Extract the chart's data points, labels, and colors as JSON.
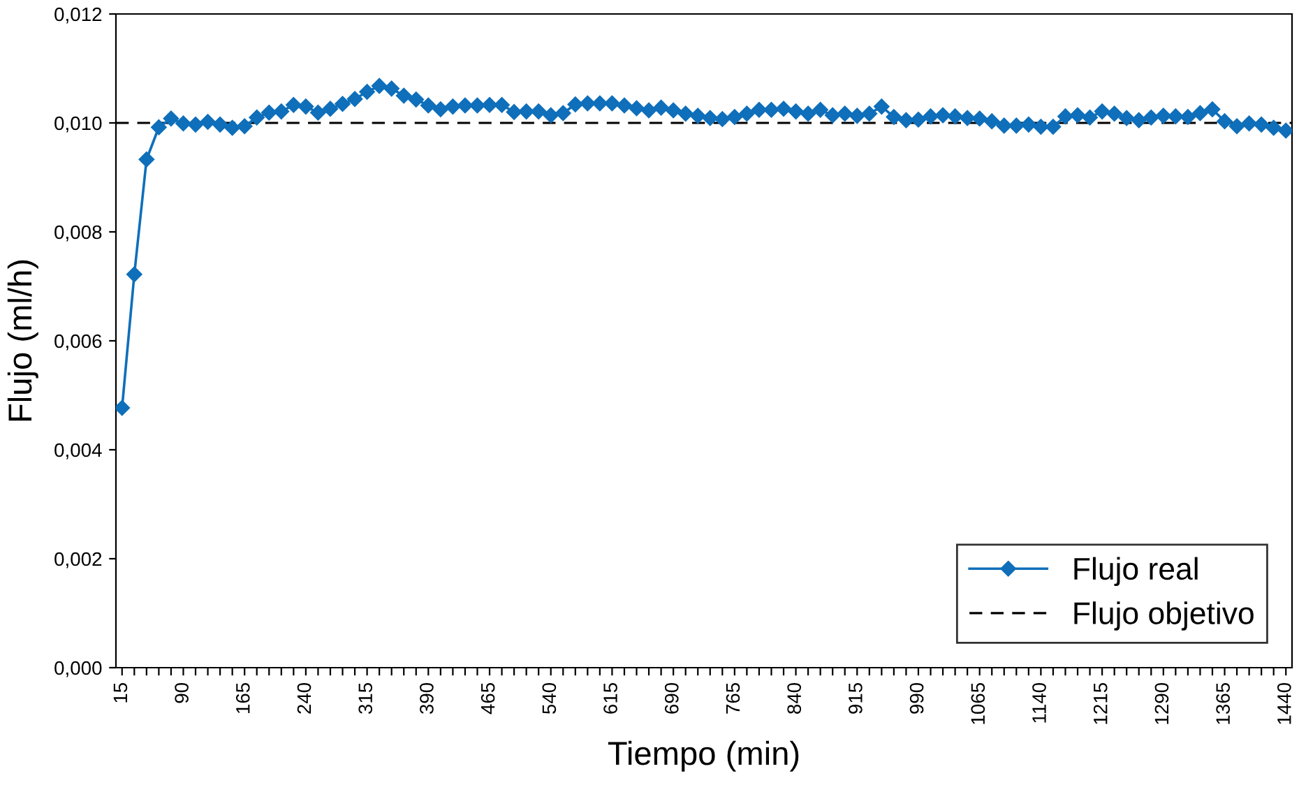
{
  "chart_data": {
    "type": "line",
    "xlabel": "Tiempo (min)",
    "ylabel": "Flujo (ml/h)",
    "categories": [
      "15",
      null,
      null,
      null,
      null,
      "90",
      null,
      null,
      null,
      null,
      "165",
      null,
      null,
      null,
      null,
      "240",
      null,
      null,
      null,
      null,
      "315",
      null,
      null,
      null,
      null,
      "390",
      null,
      null,
      null,
      null,
      "465",
      null,
      null,
      null,
      null,
      "540",
      null,
      null,
      null,
      null,
      "615",
      null,
      null,
      null,
      null,
      "690",
      null,
      null,
      null,
      null,
      "765",
      null,
      null,
      null,
      null,
      "840",
      null,
      null,
      null,
      null,
      "915",
      null,
      null,
      null,
      null,
      "990",
      null,
      null,
      null,
      null,
      "1065",
      null,
      null,
      null,
      null,
      "1140",
      null,
      null,
      null,
      null,
      "1215",
      null,
      null,
      null,
      null,
      "1290",
      null,
      null,
      null,
      null,
      "1365",
      null,
      null,
      null,
      null,
      "1440"
    ],
    "series": [
      {
        "name": "Flujo real",
        "color": "#0f6fba",
        "values": [
          0.00477,
          0.00722,
          0.00933,
          0.00992,
          0.01008,
          0.00999,
          0.00997,
          0.01002,
          0.00997,
          0.00991,
          0.00994,
          0.0101,
          0.01019,
          0.01021,
          0.01033,
          0.0103,
          0.01019,
          0.01026,
          0.01035,
          0.01044,
          0.01057,
          0.01068,
          0.01063,
          0.0105,
          0.01043,
          0.01032,
          0.01025,
          0.0103,
          0.01032,
          0.01032,
          0.01033,
          0.01033,
          0.0102,
          0.01021,
          0.01021,
          0.01014,
          0.01018,
          0.01034,
          0.01036,
          0.01036,
          0.01036,
          0.01032,
          0.01027,
          0.01023,
          0.01028,
          0.01023,
          0.01017,
          0.01013,
          0.01009,
          0.01007,
          0.01011,
          0.01017,
          0.01024,
          0.01024,
          0.01026,
          0.01021,
          0.01017,
          0.01024,
          0.01014,
          0.01017,
          0.01013,
          0.01017,
          0.0103,
          0.01011,
          0.01005,
          0.01006,
          0.01012,
          0.01014,
          0.01012,
          0.01009,
          0.01008,
          0.01003,
          0.00995,
          0.00995,
          0.00997,
          0.00993,
          0.00993,
          0.01012,
          0.01014,
          0.0101,
          0.01021,
          0.01017,
          0.01009,
          0.01005,
          0.0101,
          0.01013,
          0.01012,
          0.01011,
          0.01018,
          0.01025,
          0.01003,
          0.00994,
          0.00999,
          0.00997,
          0.00991,
          0.00986
        ]
      }
    ],
    "ylim": [
      0,
      0.012
    ],
    "yticks": [
      {
        "value": 0,
        "label": "0,000"
      },
      {
        "value": 0.002,
        "label": "0,002"
      },
      {
        "value": 0.004,
        "label": "0,004"
      },
      {
        "value": 0.006,
        "label": "0,006"
      },
      {
        "value": 0.008,
        "label": "0,008"
      },
      {
        "value": 0.01,
        "label": "0,010"
      },
      {
        "value": 0.012,
        "label": "0,012"
      }
    ],
    "ref_lines": [
      {
        "axis": "y",
        "value": 0.01,
        "label": "Flujo objetivo",
        "color": "#000000",
        "line_style": "dashed"
      }
    ],
    "marker": "diamond",
    "line_style": "solid",
    "grid": false,
    "legend": "bottom right"
  }
}
